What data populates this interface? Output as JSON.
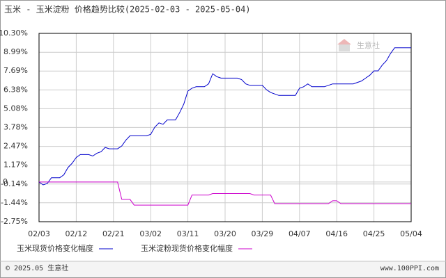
{
  "chart_data": {
    "type": "line",
    "title": "玉米 - 玉米淀粉 价格趋势比较(2025-02-03 - 2025-05-04)",
    "watermark": "生意社",
    "copyright": "© 2025.05 生意社",
    "source": "www.100PPI.com",
    "categories": [
      "02/03",
      null,
      null,
      null,
      null,
      null,
      null,
      null,
      null,
      "02/12",
      null,
      null,
      null,
      null,
      null,
      null,
      null,
      null,
      "02/21",
      null,
      null,
      null,
      null,
      null,
      null,
      null,
      null,
      "03/02",
      null,
      null,
      null,
      null,
      null,
      null,
      null,
      null,
      "03/11",
      null,
      null,
      null,
      null,
      null,
      null,
      null,
      null,
      "03/20",
      null,
      null,
      null,
      null,
      null,
      null,
      null,
      null,
      "03/29",
      null,
      null,
      null,
      null,
      null,
      null,
      null,
      null,
      "04/07",
      null,
      null,
      null,
      null,
      null,
      null,
      null,
      null,
      "04/16",
      null,
      null,
      null,
      null,
      null,
      null,
      null,
      null,
      "04/25",
      null,
      null,
      null,
      null,
      null,
      null,
      null,
      null,
      "05/04"
    ],
    "series": [
      {
        "name": "玉米现货价格变化幅度",
        "color": "#0000cc",
        "values": [
          0,
          -0.2,
          -0.1,
          0.3,
          0.3,
          0.3,
          0.5,
          1.0,
          1.3,
          1.7,
          1.9,
          1.9,
          1.9,
          1.8,
          2.0,
          2.1,
          2.4,
          2.3,
          2.3,
          2.3,
          2.5,
          2.9,
          3.2,
          3.2,
          3.2,
          3.2,
          3.2,
          3.3,
          3.8,
          4.1,
          4.0,
          4.3,
          4.3,
          4.3,
          4.8,
          5.4,
          6.3,
          6.5,
          6.6,
          6.6,
          6.6,
          6.8,
          7.5,
          7.3,
          7.2,
          7.2,
          7.2,
          7.2,
          7.2,
          7.1,
          6.8,
          6.7,
          6.7,
          6.7,
          6.7,
          6.4,
          6.2,
          6.1,
          6.0,
          6.0,
          6.0,
          6.0,
          6.0,
          6.5,
          6.6,
          6.8,
          6.6,
          6.6,
          6.6,
          6.6,
          6.7,
          6.8,
          6.8,
          6.8,
          6.8,
          6.8,
          6.8,
          6.9,
          7.0,
          7.2,
          7.4,
          7.7,
          7.7,
          8.1,
          8.4,
          8.9,
          9.3,
          9.3,
          9.3,
          9.3,
          9.3
        ]
      },
      {
        "name": "玉米淀粉现货价格变化幅度",
        "color": "#cc00cc",
        "values": [
          0,
          0,
          0,
          0,
          0,
          0,
          0,
          0,
          0,
          0,
          0,
          0,
          0,
          0,
          0,
          0,
          0,
          0,
          0,
          0,
          -1.2,
          -1.2,
          -1.2,
          -1.6,
          -1.6,
          -1.6,
          -1.6,
          -1.6,
          -1.6,
          -1.6,
          -1.6,
          -1.6,
          -1.6,
          -1.6,
          -1.6,
          -1.6,
          -1.6,
          -0.9,
          -0.9,
          -0.9,
          -0.9,
          -0.9,
          -0.8,
          -0.8,
          -0.8,
          -0.8,
          -0.8,
          -0.8,
          -0.8,
          -0.8,
          -0.8,
          -0.8,
          -0.9,
          -0.9,
          -0.9,
          -0.9,
          -0.9,
          -1.5,
          -1.5,
          -1.5,
          -1.5,
          -1.5,
          -1.5,
          -1.5,
          -1.5,
          -1.5,
          -1.5,
          -1.5,
          -1.5,
          -1.5,
          -1.5,
          -1.3,
          -1.3,
          -1.5,
          -1.5,
          -1.5,
          -1.5,
          -1.5,
          -1.5,
          -1.5,
          -1.5,
          -1.5,
          -1.5,
          -1.5,
          -1.5,
          -1.5,
          -1.5,
          -1.5,
          -1.5,
          -1.5,
          -1.5
        ]
      }
    ],
    "ylim": [
      -2.75,
      10.3
    ],
    "yticks": [
      {
        "value": 10.3,
        "label": "10.30%"
      },
      {
        "value": 8.99,
        "label": "8.99%"
      },
      {
        "value": 7.69,
        "label": "7.69%"
      },
      {
        "value": 6.38,
        "label": "6.38%"
      },
      {
        "value": 5.08,
        "label": "5.08%"
      },
      {
        "value": 3.78,
        "label": "3.78%"
      },
      {
        "value": 2.47,
        "label": "2.47%"
      },
      {
        "value": 1.17,
        "label": "1.17%"
      },
      {
        "value": 0,
        "label": "0"
      },
      {
        "value": -0.14,
        "label": "-0.14%"
      },
      {
        "value": -1.44,
        "label": "-1.44%"
      },
      {
        "value": -2.75,
        "label": "-2.75%"
      }
    ],
    "grid": true
  }
}
